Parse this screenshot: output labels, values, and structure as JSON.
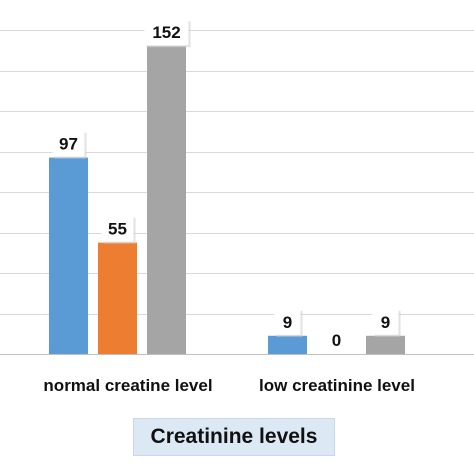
{
  "chart_data": {
    "type": "bar",
    "categories": [
      "normal creatine level",
      "low creatinine level"
    ],
    "series": [
      {
        "values": [
          97,
          9
        ],
        "color": "#5b9bd5"
      },
      {
        "values": [
          55,
          0
        ],
        "color": "#ed7d31"
      },
      {
        "values": [
          152,
          9
        ],
        "color": "#a5a5a5"
      }
    ],
    "data_labels": [
      [
        "97",
        "55",
        "152"
      ],
      [
        "9",
        "0",
        "9"
      ]
    ],
    "title": "",
    "xlabel": "Creatinine levels",
    "ylabel": "",
    "ylim": [
      0,
      160
    ],
    "grid": true,
    "legend": "none"
  }
}
